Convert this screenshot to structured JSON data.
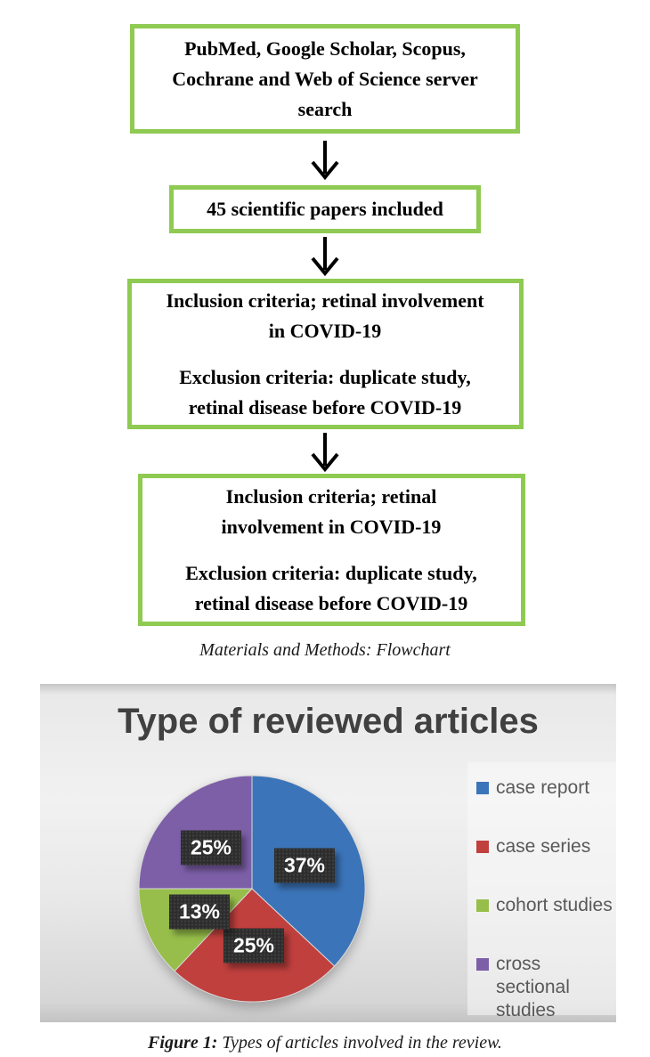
{
  "flowchart": {
    "border_color": "#8fca52",
    "boxes": [
      {
        "paragraphs": [
          [
            "PubMed, Google Scholar, Scopus,",
            "Cochrane and Web of Science server",
            "search"
          ]
        ]
      },
      {
        "paragraphs": [
          [
            "45 scientific papers included"
          ]
        ]
      },
      {
        "paragraphs": [
          [
            "Inclusion criteria; retinal involvement",
            "in COVID-19"
          ],
          [
            "Exclusion criteria: duplicate study,",
            "retinal disease before COVID-19"
          ]
        ]
      },
      {
        "paragraphs": [
          [
            "Inclusion criteria; retinal",
            "involvement in COVID-19"
          ],
          [
            "Exclusion criteria: duplicate study,",
            "retinal disease before COVID-19"
          ]
        ]
      }
    ],
    "caption": "Materials and Methods: Flowchart"
  },
  "chart_data": {
    "type": "pie",
    "title": "Type of reviewed articles",
    "start_angle_deg": 0,
    "direction": "clockwise",
    "legend_position": "right",
    "background": "gray-gradient",
    "slices": [
      {
        "label": "case report",
        "value": 37,
        "display": "37%",
        "color": "#3b74b8"
      },
      {
        "label": "case series",
        "value": 25,
        "display": "25%",
        "color": "#c0403e"
      },
      {
        "label": "cohort studies",
        "value": 13,
        "display": "13%",
        "color": "#97be4a"
      },
      {
        "label": "cross sectional studies",
        "value": 25,
        "display": "25%",
        "color": "#7d5fa8"
      }
    ],
    "label_box_color": "#2d2d2d",
    "label_text_color": "#ffffff",
    "title_color": "#404040"
  },
  "figure_caption": {
    "label": "Figure 1:",
    "text": "Types of articles involved in the review."
  }
}
